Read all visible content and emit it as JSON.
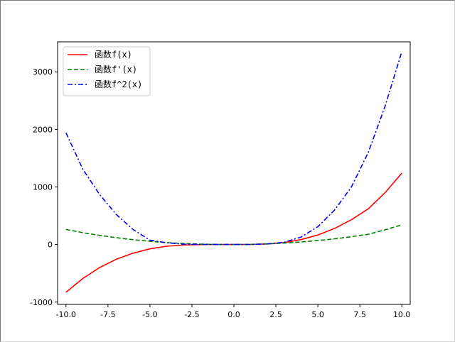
{
  "chart_data": {
    "type": "line",
    "xlim": [
      -10.5,
      10.5
    ],
    "ylim": [
      -1040,
      3520
    ],
    "xticks": [
      -10.0,
      -7.5,
      -5.0,
      -2.5,
      0.0,
      2.5,
      5.0,
      7.5,
      10.0
    ],
    "xtick_labels": [
      "-10.0",
      "-7.5",
      "-5.0",
      "-2.5",
      "0.0",
      "2.5",
      "5.0",
      "7.5",
      "10.0"
    ],
    "yticks": [
      -1000,
      0,
      1000,
      2000,
      3000
    ],
    "ytick_labels": [
      "-1000",
      "0",
      "1000",
      "2000",
      "3000"
    ],
    "grid": false,
    "legend_position": "upper-left",
    "x": [
      -10,
      -9,
      -8,
      -7,
      -6,
      -5,
      -4,
      -3,
      -2,
      -1,
      0,
      1,
      2,
      3,
      4,
      5,
      6,
      7,
      8,
      9,
      10
    ],
    "series": [
      {
        "name": "函数f(x)",
        "color": "#ff0000",
        "style": "solid",
        "values": [
          -830,
          -590,
          -400,
          -255,
          -150,
          -75,
          -30,
          -8,
          -1,
          0,
          0,
          1,
          10,
          35,
          85,
          165,
          280,
          430,
          620,
          900,
          1240
        ]
      },
      {
        "name": "函数f'(x)",
        "color": "#008000",
        "style": "dashed",
        "values": [
          262,
          206,
          159,
          118,
          84,
          56,
          34,
          18,
          7,
          1,
          0,
          3,
          11,
          25,
          44,
          69,
          99,
          136,
          178,
          255,
          342
        ]
      },
      {
        "name": "函数f^2(x)",
        "color": "#0000ff",
        "style": "dashdot",
        "values": [
          1940,
          1310,
          870,
          520,
          260,
          75,
          30,
          6,
          1,
          0,
          0,
          1,
          10,
          40,
          130,
          310,
          600,
          1000,
          1600,
          2400,
          3350
        ]
      }
    ]
  }
}
